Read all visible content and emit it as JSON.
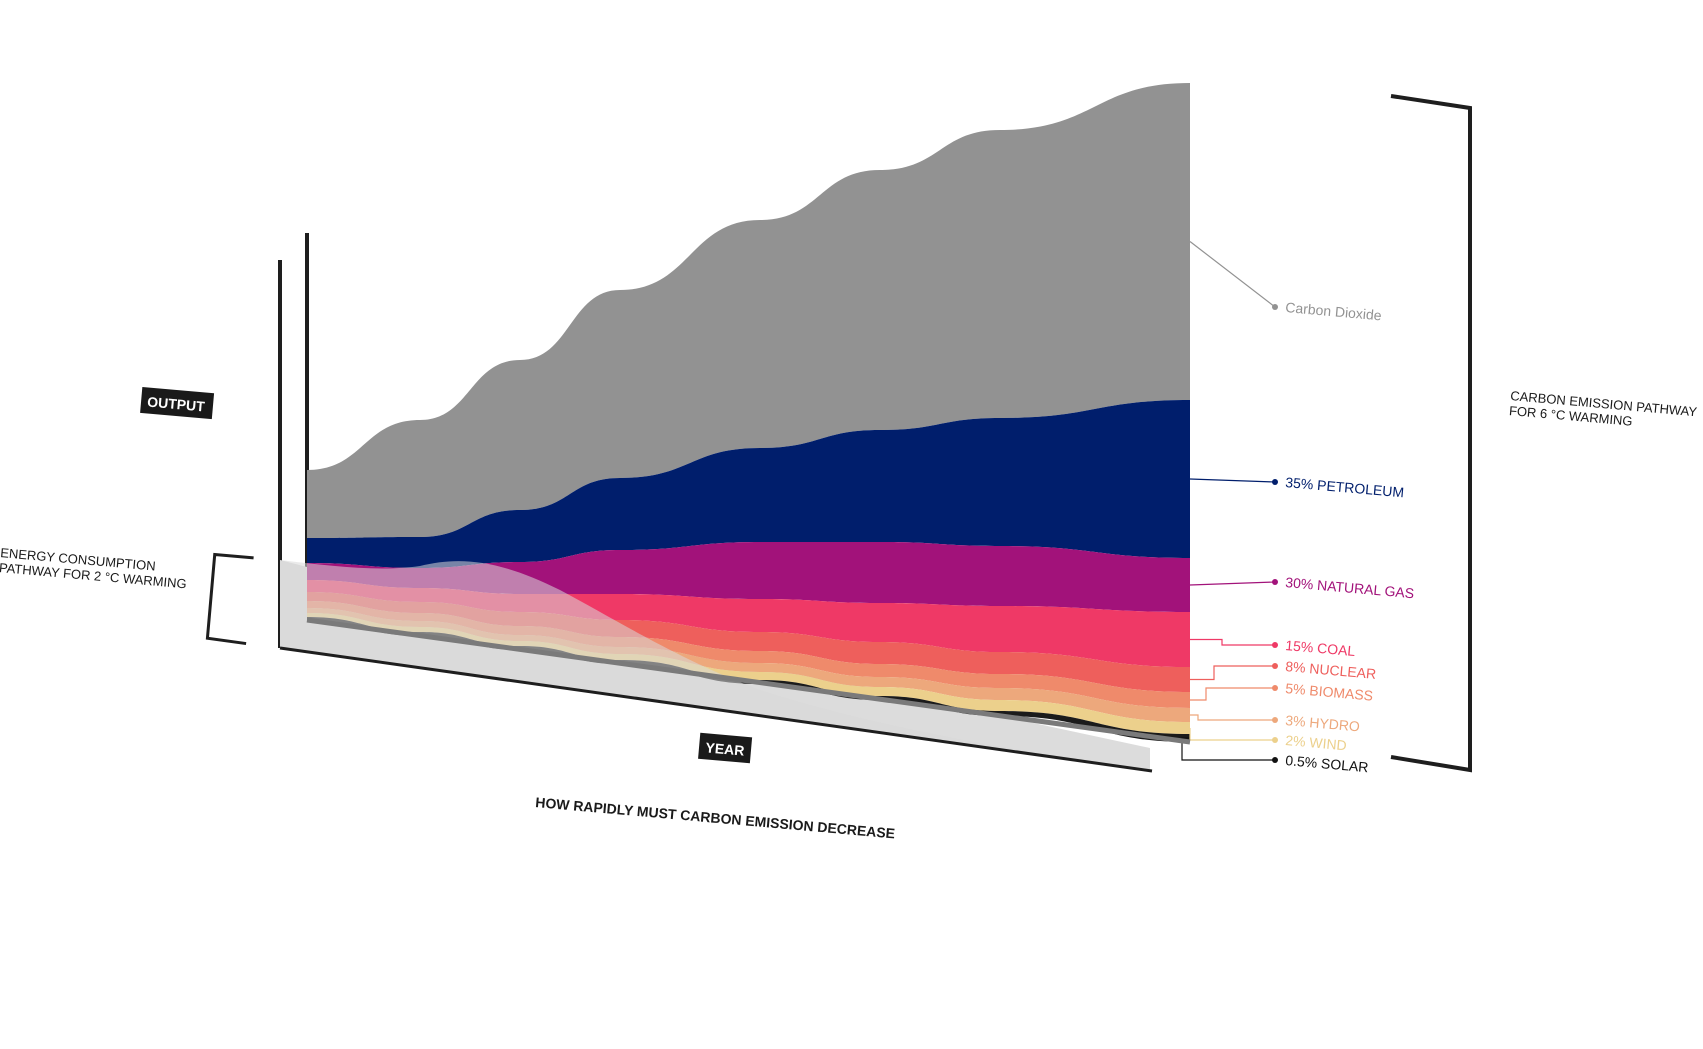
{
  "labels": {
    "output": "OUTPUT",
    "year": "YEAR",
    "energy_line1": "ENERGY CONSUMPTION",
    "energy_line2": "PATHWAY FOR 2 °C WARMING",
    "carbon_line1": "CARBON EMISSION PATHWAY",
    "carbon_line2": "FOR 6 °C WARMING",
    "subtitle": "HOW RAPIDLY MUST CARBON EMISSION DECREASE"
  },
  "chart_data": {
    "type": "area",
    "stacked": true,
    "perspective_3d": true,
    "title": "",
    "subtitle": "HOW RAPIDLY MUST CARBON EMISSION DECREASE",
    "xlabel": "YEAR",
    "ylabel": "OUTPUT",
    "grid": false,
    "legend": "right (leader-line labels)",
    "series_order": "bottom to top",
    "series": [
      {
        "name": "0.5% SOLAR",
        "label": "0.5% SOLAR",
        "color": "#1b1b1b"
      },
      {
        "name": "2% WIND",
        "label": "2% WIND",
        "color": "#ecd08c"
      },
      {
        "name": "3% HYDRO",
        "label": "3% HYDRO",
        "color": "#eda87c"
      },
      {
        "name": "5% BIOMASS",
        "label": "5% BIOMASS",
        "color": "#ef8a6b"
      },
      {
        "name": "8% NUCLEAR",
        "label": "8% NUCLEAR",
        "color": "#ee5f5c"
      },
      {
        "name": "15% COAL",
        "label": "15% COAL",
        "color": "#ef3966"
      },
      {
        "name": "30% NATURAL GAS",
        "label": "30% NATURAL GAS",
        "color": "#a2127a"
      },
      {
        "name": "35% PETROLEUM",
        "label": "35% PETROLEUM",
        "color": "#001e6c"
      },
      {
        "name": "Carbon Dioxide",
        "label": "Carbon Dioxide",
        "color": "#929292"
      }
    ],
    "overlay": {
      "name": "ENERGY CONSUMPTION PATHWAY FOR 2 °C WARMING",
      "shape": "bell",
      "color": "#d9d9d9"
    }
  }
}
